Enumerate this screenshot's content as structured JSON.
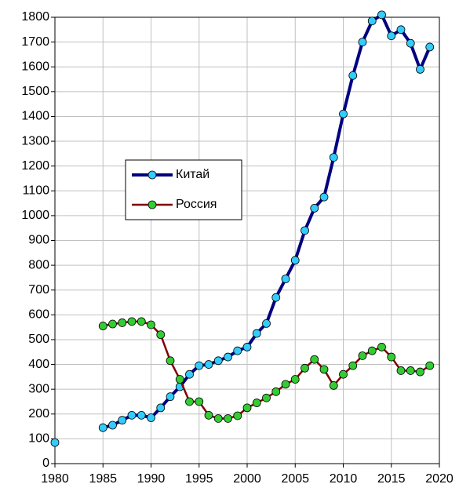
{
  "chart_data": {
    "type": "line",
    "x": [
      1980,
      1981,
      1982,
      1983,
      1984,
      1985,
      1986,
      1987,
      1988,
      1989,
      1990,
      1991,
      1992,
      1993,
      1994,
      1995,
      1996,
      1997,
      1998,
      1999,
      2000,
      2001,
      2002,
      2003,
      2004,
      2005,
      2006,
      2007,
      2008,
      2009,
      2010,
      2011,
      2012,
      2013,
      2014,
      2015,
      2016,
      2017,
      2018,
      2019
    ],
    "series": [
      {
        "name": "Китай",
        "color": "#000080",
        "marker_color": "#33ccff",
        "values": [
          85,
          null,
          null,
          null,
          null,
          145,
          155,
          175,
          195,
          195,
          185,
          225,
          270,
          310,
          360,
          395,
          400,
          415,
          430,
          455,
          470,
          525,
          565,
          670,
          745,
          820,
          940,
          1030,
          1075,
          1235,
          1410,
          1565,
          1700,
          1785,
          1810,
          1725,
          1750,
          1695,
          1590,
          1680
        ]
      },
      {
        "name": "Россия",
        "color": "#800000",
        "marker_color": "#33cc33",
        "values": [
          null,
          null,
          null,
          null,
          null,
          555,
          563,
          568,
          573,
          573,
          560,
          520,
          415,
          340,
          250,
          250,
          195,
          182,
          182,
          193,
          225,
          245,
          265,
          290,
          320,
          340,
          385,
          420,
          380,
          315,
          360,
          395,
          435,
          455,
          470,
          430,
          375,
          375,
          370,
          395
        ]
      }
    ],
    "xlim": [
      1980,
      2020
    ],
    "xticks": [
      1980,
      1985,
      1990,
      1995,
      2000,
      2005,
      2010,
      2015,
      2020
    ],
    "ylim": [
      0,
      1800
    ],
    "yticks": [
      0,
      100,
      200,
      300,
      400,
      500,
      600,
      700,
      800,
      900,
      1000,
      1100,
      1200,
      1300,
      1400,
      1500,
      1600,
      1700,
      1800
    ],
    "grid": true
  }
}
